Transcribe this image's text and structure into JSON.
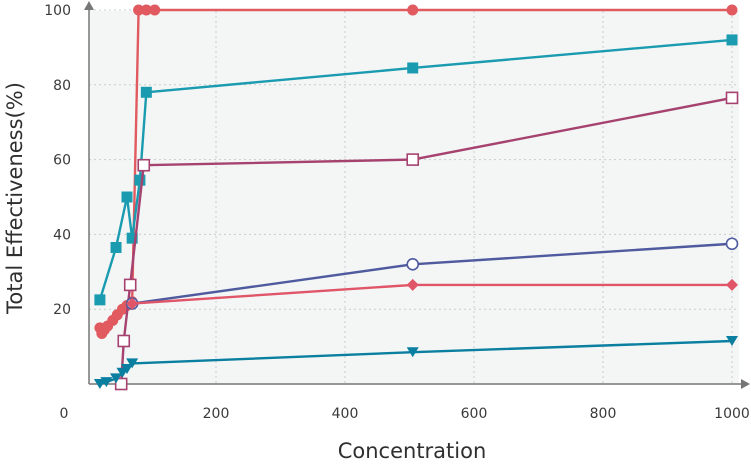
{
  "chart_data": {
    "type": "scatter",
    "title": "",
    "xlabel": "Concentration",
    "ylabel": "Total Effectiveness(%)",
    "xlim": [
      0,
      1000
    ],
    "ylim": [
      0,
      100
    ],
    "xticks": [
      0,
      200,
      400,
      600,
      800,
      1000
    ],
    "yticks": [
      20,
      40,
      60,
      80,
      100
    ],
    "grid": true,
    "legend": "none",
    "series": [
      {
        "color": "#e05a5f",
        "marker": "circle",
        "filled": true,
        "x": [
          20,
          23,
          27,
          32,
          40,
          47,
          55,
          62,
          70,
          80,
          92,
          105,
          505,
          1000
        ],
        "y": [
          15,
          13.5,
          14.5,
          15.5,
          17,
          18.5,
          20,
          21,
          22,
          100,
          100,
          100,
          100,
          100
        ]
      },
      {
        "color": "#1a9bb0",
        "marker": "square",
        "filled": true,
        "x": [
          20,
          45,
          62,
          70,
          82,
          92,
          505,
          1000
        ],
        "y": [
          22.5,
          36.5,
          50,
          39,
          54.5,
          78,
          84.5,
          92
        ]
      },
      {
        "color": "#a6426f",
        "marker": "square",
        "filled": false,
        "x": [
          53,
          57,
          67,
          88,
          505,
          1000
        ],
        "y": [
          0,
          11.5,
          26.5,
          58.5,
          60,
          76.5
        ]
      },
      {
        "color": "#4f5b9e",
        "marker": "circle",
        "filled": false,
        "x": [
          70,
          505,
          1000
        ],
        "y": [
          21.5,
          32,
          37.5
        ]
      },
      {
        "color": "#e05568",
        "marker": "diamond",
        "filled": true,
        "x": [
          70,
          505,
          1000
        ],
        "y": [
          21.5,
          26.5,
          26.5
        ]
      },
      {
        "color": "#0a7fa0",
        "marker": "triangle-down",
        "filled": true,
        "x": [
          20,
          30,
          45,
          55,
          62,
          70,
          505,
          1000
        ],
        "y": [
          0,
          0.5,
          1.5,
          3,
          4,
          5.5,
          8.5,
          11.5
        ]
      }
    ]
  }
}
